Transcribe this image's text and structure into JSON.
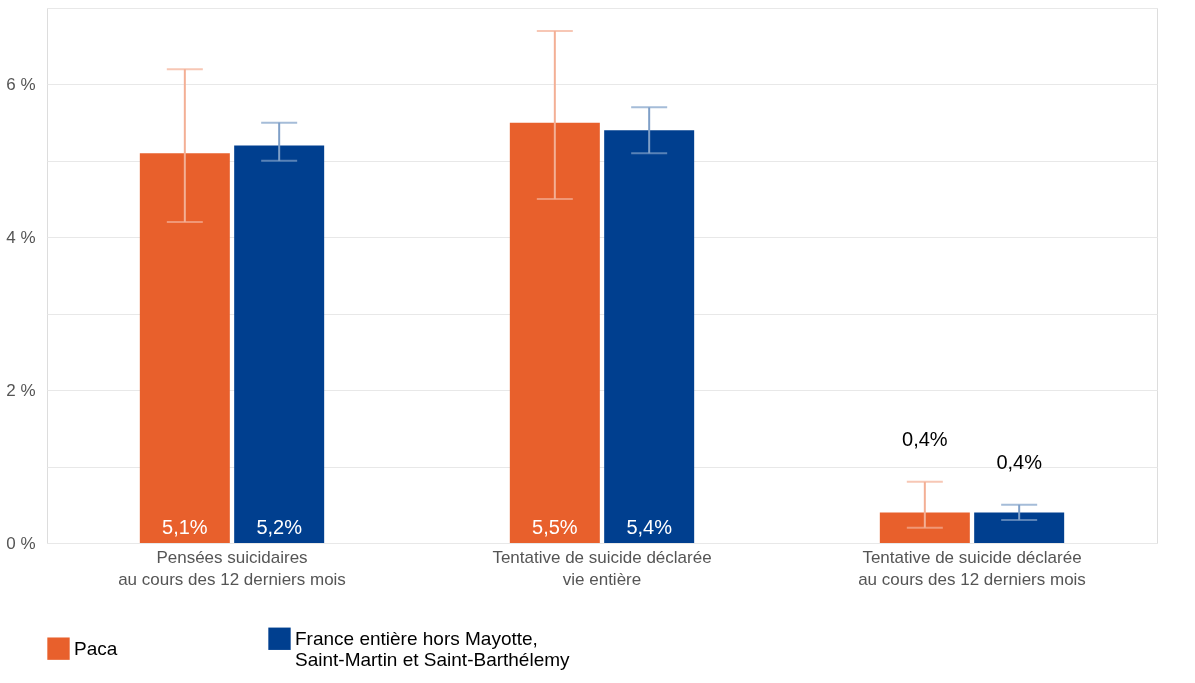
{
  "chart_data": {
    "type": "bar",
    "categories": [
      "Pensées suicidaires\nau cours des 12 derniers mois",
      "Tentative de suicide déclarée\nvie entière",
      "Tentative de suicide déclarée\nau cours des 12 derniers mois"
    ],
    "series": [
      {
        "name": "Paca",
        "color": "#e8602c",
        "values": [
          5.1,
          5.5,
          0.4
        ],
        "errors": [
          [
            4.2,
            6.2
          ],
          [
            4.5,
            6.7
          ],
          [
            0.2,
            0.8
          ]
        ],
        "value_labels": [
          "5,1%",
          "5,5%",
          "0,4%"
        ]
      },
      {
        "name": "France entière hors Mayotte,\nSaint-Martin et Saint-Barthélemy",
        "color": "#003f8f",
        "values": [
          5.2,
          5.4,
          0.4
        ],
        "errors": [
          [
            5.0,
            5.5
          ],
          [
            5.1,
            5.7
          ],
          [
            0.3,
            0.5
          ]
        ],
        "value_labels": [
          "5,2%",
          "5,4%",
          "0,4%"
        ]
      }
    ],
    "ylim": [
      0,
      7
    ],
    "yticks": [
      {
        "value": 0,
        "label": "0 %"
      },
      {
        "value": 1,
        "label": null
      },
      {
        "value": 2,
        "label": "2 %"
      },
      {
        "value": 3,
        "label": null
      },
      {
        "value": 4,
        "label": "4 %"
      },
      {
        "value": 5,
        "label": null
      },
      {
        "value": 6,
        "label": "6 %"
      },
      {
        "value": 7,
        "label": null
      }
    ],
    "grid": "y",
    "legend": "bottom"
  }
}
